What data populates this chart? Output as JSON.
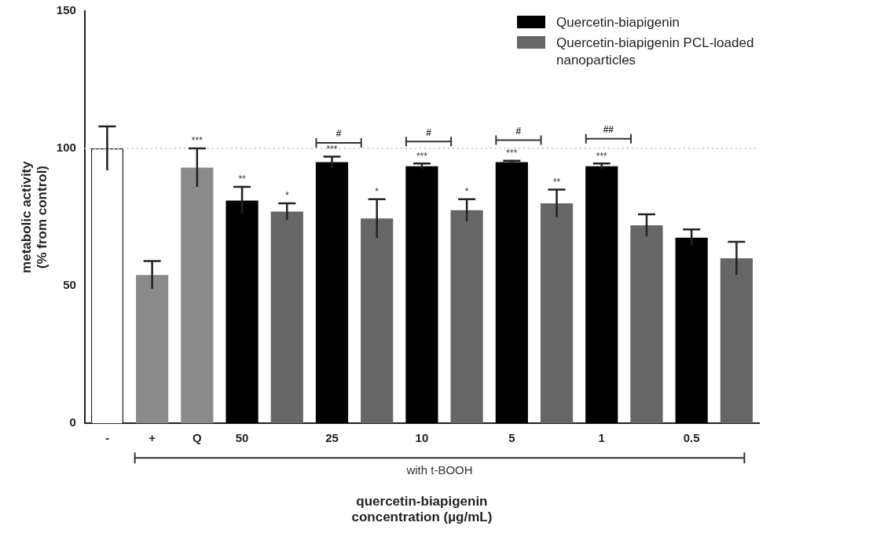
{
  "chart_data": {
    "type": "bar",
    "xlabel": "quercetin-biapigenin\nconcentration (µg/mL)",
    "ylabel": "metabolic activity\n(% from control)",
    "categories": [
      "-",
      "+",
      "Q",
      "50",
      null,
      "25",
      null,
      "10",
      null,
      "5",
      null,
      "1",
      null,
      "0.5",
      null
    ],
    "series": [
      {
        "color": "#ffffff",
        "colors": [
          "#ffffff",
          "#8a8a8a",
          "#8a8a8a",
          null,
          null,
          null,
          null,
          null,
          null,
          null,
          null,
          null,
          null,
          null,
          null
        ],
        "values": [
          100,
          54,
          93,
          null,
          null,
          null,
          null,
          null,
          null,
          null,
          null,
          null,
          null,
          null,
          null
        ],
        "errors": [
          8,
          5,
          7,
          null,
          null,
          null,
          null,
          null,
          null,
          null,
          null,
          null,
          null,
          null,
          null
        ]
      },
      {
        "name": "Quercetin-biapigenin",
        "color": "#000000",
        "values": [
          null,
          null,
          null,
          81,
          null,
          95,
          null,
          93.5,
          null,
          95,
          null,
          93.5,
          null,
          67.5,
          null
        ],
        "errors": [
          null,
          null,
          null,
          5,
          null,
          2,
          null,
          1,
          null,
          0.5,
          null,
          1,
          null,
          3,
          null
        ]
      },
      {
        "name": "Quercetin-biapigenin PCL-loaded nanoparticles",
        "color": "#666666",
        "values": [
          null,
          null,
          null,
          null,
          77,
          null,
          74.5,
          null,
          77.5,
          null,
          80,
          null,
          72,
          null,
          60
        ],
        "errors": [
          null,
          null,
          null,
          null,
          3,
          null,
          7,
          null,
          4,
          null,
          5,
          null,
          4,
          null,
          6
        ]
      }
    ],
    "ylim": [
      0,
      150
    ],
    "yticks": [
      0,
      50,
      100,
      150
    ],
    "grid": false,
    "legend": "top right",
    "ref_lines": [
      {
        "axis": "y",
        "value": 100,
        "color": "#cccccc",
        "line_style": "dotted"
      }
    ],
    "annotations": [
      "***",
      "**",
      "*",
      "***",
      "*",
      "***",
      "*",
      "***",
      "**",
      "***",
      "#",
      "#",
      "#",
      "##",
      "with t-BOOH"
    ]
  }
}
